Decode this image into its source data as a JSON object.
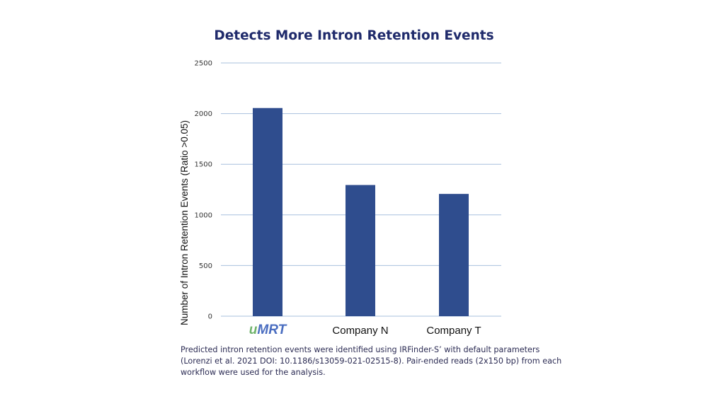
{
  "chart_data": {
    "type": "bar",
    "title": "Detects More Intron Retention Events",
    "xlabel": "",
    "ylabel": "Number of Intron Retention Events (Ratio >0.05)",
    "categories": [
      "uMRT",
      "Company N",
      "Company T"
    ],
    "values": [
      2055,
      1295,
      1207
    ],
    "ylim": [
      0,
      2500
    ],
    "yticks": [
      0,
      500,
      1000,
      1500,
      2000,
      2500
    ],
    "grid": true,
    "legend": "none",
    "colors": {
      "bar": "#2f4d8e",
      "grid": "#a8c0de",
      "brand_u": "#6fb36b",
      "brand_mrt": "#4a6dc0"
    }
  },
  "caption": {
    "lines": [
      "Predicted intron retention events were identified using IRFinder-S’ with default parameters",
      "(Lorenzi et al. 2021 DOI: 10.1186/s13059-021-02515-8).  Pair-ended reads (2x150 bp) from each",
      "workflow were used for the analysis."
    ]
  }
}
